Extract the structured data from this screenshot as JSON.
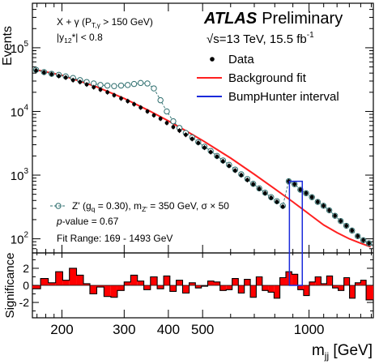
{
  "chart_data": [
    {
      "type": "scatter",
      "panel": "main",
      "ylabel": "Events",
      "yscale": "log",
      "xscale": "log",
      "ylim": [
        60,
        500000
      ],
      "xlim": [
        165,
        1520
      ],
      "experiment": "ATLAS",
      "status": "Preliminary",
      "energy_label": "√s=13 TeV, 15.5 fb",
      "energy_sup": "-1",
      "selection_line1": "X + γ (P",
      "selection_line1_sub": "T,γ",
      "selection_line1_end": " > 150 GeV)",
      "selection_line2": "|y",
      "selection_line2_sub": "12",
      "selection_line2_end": "*| < 0.8",
      "signal_label": "Z' (g",
      "signal_label_sub1": "q",
      "signal_label_mid": " = 0.30), m",
      "signal_label_sub2": "Z'",
      "signal_label_end": " = 350 GeV,  σ × 50",
      "pvalue_label": "p",
      "pvalue_text": "-value = 0.67",
      "fit_range_label": "Fit Range: 169 - 1493 GeV",
      "legend": [
        {
          "name": "Data",
          "marker": "dot",
          "color": "#000000"
        },
        {
          "name": "Background fit",
          "marker": "line",
          "color": "#ff2020"
        },
        {
          "name": "BumpHunter interval",
          "marker": "line",
          "color": "#1a2adb"
        }
      ],
      "bumphunter_interval": [
        880,
        957
      ],
      "series": [
        {
          "name": "Data",
          "x": [
            169,
            178,
            187,
            196,
            205,
            215,
            225,
            235,
            246,
            257,
            269,
            281,
            294,
            307,
            320,
            334,
            349,
            364,
            380,
            396,
            413,
            430,
            448,
            467,
            486,
            506,
            527,
            549,
            571,
            594,
            618,
            643,
            669,
            695,
            723,
            751,
            781,
            811,
            843,
            876,
            910,
            945,
            981,
            1019,
            1058,
            1099,
            1141,
            1184,
            1229,
            1275,
            1323,
            1373,
            1424,
            1477
          ],
          "y": [
            44000,
            41000,
            38500,
            36000,
            34000,
            31000,
            29000,
            26500,
            24000,
            22000,
            20000,
            18000,
            16000,
            14500,
            13000,
            11500,
            10000,
            8700,
            7700,
            6600,
            5700,
            5000,
            4300,
            3700,
            3200,
            2700,
            2300,
            1950,
            1650,
            1400,
            1180,
            1000,
            840,
            720,
            610,
            520,
            440,
            380,
            320,
            800,
            720,
            590,
            520,
            450,
            380,
            330,
            280,
            230,
            190,
            160,
            135,
            110,
            95,
            85
          ]
        },
        {
          "name": "Background fit",
          "x": [
            169,
            200,
            250,
            300,
            350,
            400,
            450,
            500,
            600,
            700,
            800,
            900,
            1000,
            1100,
            1200,
            1300,
            1400,
            1493
          ],
          "y": [
            45000,
            37000,
            24500,
            16000,
            10500,
            7100,
            4900,
            3500,
            1850,
            1030,
            610,
            380,
            245,
            165,
            125,
            100,
            85,
            75
          ]
        },
        {
          "name": "Z' (gq = 0.30), mZ' = 350 GeV,  σ × 50",
          "x": [
            169,
            178,
            187,
            196,
            205,
            215,
            225,
            235,
            246,
            257,
            269,
            281,
            294,
            307,
            320,
            334,
            349,
            364,
            380,
            396,
            413,
            430,
            448,
            467,
            486,
            506,
            527,
            549,
            571,
            594,
            618,
            643,
            669,
            695,
            723,
            751,
            781,
            811,
            843,
            876,
            910,
            945,
            981,
            1019,
            1058,
            1099,
            1141,
            1184,
            1229,
            1275,
            1323,
            1373,
            1424,
            1477
          ],
          "y": [
            45000,
            41500,
            39000,
            37500,
            35500,
            33500,
            31000,
            29000,
            27500,
            26000,
            25500,
            25000,
            25500,
            26000,
            27000,
            28000,
            27500,
            23000,
            15000,
            10000,
            7000,
            5500,
            4600,
            3900,
            3300,
            2800,
            2400,
            2000,
            1700,
            1450,
            1220,
            1030,
            870,
            730,
            620,
            530,
            450,
            390,
            330,
            800,
            720,
            590,
            520,
            450,
            380,
            330,
            280,
            230,
            190,
            160,
            135,
            110,
            95,
            85
          ]
        }
      ],
      "y_ticks": [
        {
          "value": 100,
          "base": "10",
          "exp": "2"
        },
        {
          "value": 1000,
          "base": "10",
          "exp": "3"
        },
        {
          "value": 10000,
          "base": "10",
          "exp": "4"
        },
        {
          "value": 100000,
          "base": "10",
          "exp": "5"
        }
      ]
    },
    {
      "type": "bar",
      "panel": "ratio",
      "ylabel": "Significance",
      "xlabel": "m",
      "xlabel_sub": "jj",
      "xlabel_unit": " [GeV]",
      "xscale": "log",
      "xlim": [
        165,
        1520
      ],
      "ylim": [
        -3.8,
        3.8
      ],
      "y_ticks": [
        "-2",
        "0",
        "2"
      ],
      "y_tick_values": [
        -2,
        0,
        2
      ],
      "x_ticks": [
        "200",
        "300",
        "400",
        "500",
        "1000"
      ],
      "x_tick_values": [
        200,
        300,
        400,
        500,
        1000
      ],
      "bin_edges": [
        165,
        174,
        183,
        192,
        201,
        210,
        220,
        230,
        240,
        251,
        263,
        275,
        287,
        300,
        313,
        327,
        341,
        356,
        372,
        388,
        404,
        421,
        439,
        458,
        477,
        496,
        517,
        538,
        560,
        583,
        606,
        631,
        656,
        682,
        709,
        737,
        766,
        796,
        827,
        860,
        894,
        929,
        965,
        1002,
        1041,
        1081,
        1122,
        1165,
        1209,
        1255,
        1302,
        1350,
        1400,
        1450,
        1520
      ],
      "values": [
        -0.4,
        0.8,
        0.3,
        1.6,
        0.6,
        2.0,
        1.2,
        0.2,
        -1.0,
        -0.2,
        -1.3,
        -1.4,
        -0.6,
        0.4,
        1.2,
        0.5,
        -0.5,
        1.0,
        -0.4,
        1.1,
        -0.7,
        0.6,
        -0.9,
        0.3,
        -0.3,
        -0.1,
        0.5,
        0.4,
        -0.6,
        -0.5,
        0.8,
        -0.9,
        0.7,
        -1.4,
        1.0,
        -0.6,
        -0.8,
        -1.5,
        0.9,
        1.6,
        1.3,
        -0.5,
        -1.2,
        0.4,
        1.0,
        0.2,
        1.1,
        -0.3,
        -0.6,
        0.9,
        -1.5,
        0.3,
        0.6,
        -1.7
      ]
    }
  ]
}
